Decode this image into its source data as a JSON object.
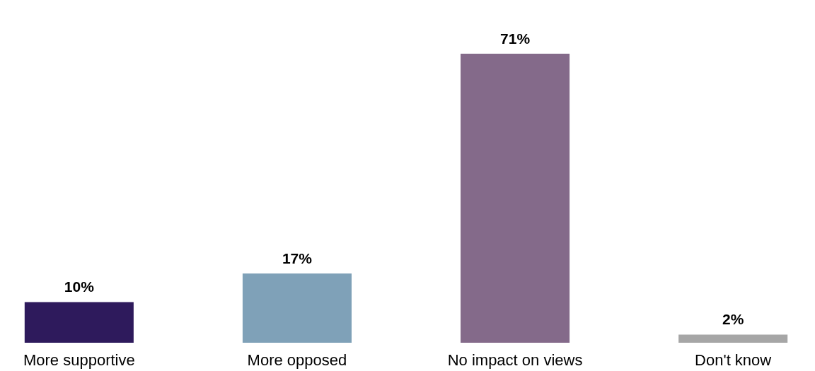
{
  "chart_data": {
    "type": "bar",
    "categories": [
      "More supportive",
      "More opposed",
      "No impact on views",
      "Don't know"
    ],
    "values": [
      10,
      17,
      71,
      2
    ],
    "colors": [
      "#2e1a5c",
      "#7fa1b8",
      "#846a8a",
      "#a6a6a6"
    ],
    "value_labels": [
      "10%",
      "17%",
      "71%",
      "2%"
    ]
  }
}
